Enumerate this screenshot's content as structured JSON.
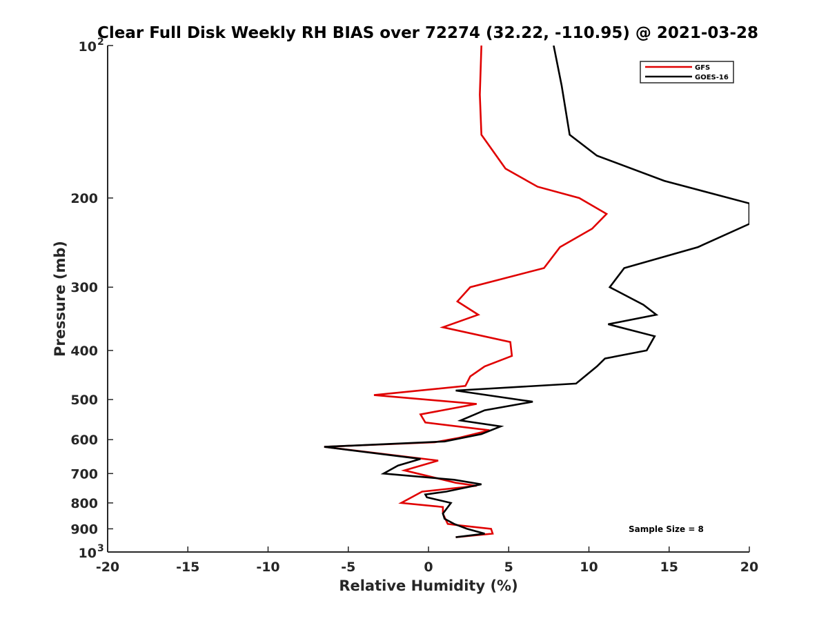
{
  "chart_data": {
    "type": "line",
    "title": "Clear Full Disk Weekly RH BIAS over 72274 (32.22, -110.95) @ 2021-03-28",
    "xlabel": "Relative Humidity (%)",
    "ylabel": "Pressure (mb)",
    "xlim": [
      -20,
      20
    ],
    "ylim": [
      100,
      1000
    ],
    "yscale": "log",
    "y_reversed": true,
    "xticks": [
      "-20",
      "-15",
      "-10",
      "-5",
      "0",
      "5",
      "10",
      "15",
      "20"
    ],
    "yticks": [
      {
        "value": 100,
        "label": "10",
        "sup": "2"
      },
      {
        "value": 200,
        "label": "200"
      },
      {
        "value": 300,
        "label": "300"
      },
      {
        "value": 400,
        "label": "400"
      },
      {
        "value": 500,
        "label": "500"
      },
      {
        "value": 600,
        "label": "600"
      },
      {
        "value": 700,
        "label": "700"
      },
      {
        "value": 800,
        "label": "800"
      },
      {
        "value": 900,
        "label": "900"
      },
      {
        "value": 1000,
        "label": "10",
        "sup": "3"
      }
    ],
    "grid": false,
    "legend_position": "top-right",
    "annotation": "Sample Size = 8",
    "series": [
      {
        "name": "GFS",
        "color": "#e00000",
        "points": [
          [
            3.3,
            100
          ],
          [
            3.2,
            125
          ],
          [
            3.3,
            150
          ],
          [
            4.8,
            175
          ],
          [
            6.8,
            190
          ],
          [
            9.4,
            200
          ],
          [
            11.1,
            215
          ],
          [
            10.2,
            230
          ],
          [
            8.2,
            250
          ],
          [
            7.2,
            275
          ],
          [
            2.6,
            300
          ],
          [
            1.8,
            320
          ],
          [
            3.1,
            340
          ],
          [
            0.9,
            360
          ],
          [
            5.1,
            385
          ],
          [
            5.2,
            410
          ],
          [
            3.5,
            430
          ],
          [
            2.6,
            450
          ],
          [
            2.3,
            470
          ],
          [
            -3.4,
            490
          ],
          [
            3.0,
            510
          ],
          [
            -0.5,
            535
          ],
          [
            -0.2,
            555
          ],
          [
            3.8,
            575
          ],
          [
            1.9,
            595
          ],
          [
            0.4,
            607
          ],
          [
            -6.5,
            620
          ],
          [
            0.6,
            660
          ],
          [
            -1.5,
            690
          ],
          [
            1.7,
            730
          ],
          [
            3.0,
            740
          ],
          [
            -0.4,
            760
          ],
          [
            -1.7,
            800
          ],
          [
            0.9,
            815
          ],
          [
            0.9,
            840
          ],
          [
            1.2,
            880
          ],
          [
            1.8,
            885
          ],
          [
            3.9,
            900
          ],
          [
            4.0,
            920
          ],
          [
            1.7,
            935
          ]
        ]
      },
      {
        "name": "GOES-16",
        "color": "#000000",
        "points": [
          [
            7.8,
            100
          ],
          [
            8.3,
            120
          ],
          [
            8.8,
            150
          ],
          [
            10.5,
            165
          ],
          [
            14.7,
            185
          ],
          [
            20.0,
            205
          ],
          [
            20.0,
            225
          ],
          [
            16.8,
            250
          ],
          [
            12.2,
            275
          ],
          [
            11.3,
            300
          ],
          [
            13.4,
            325
          ],
          [
            14.2,
            340
          ],
          [
            11.2,
            355
          ],
          [
            14.1,
            375
          ],
          [
            13.6,
            400
          ],
          [
            11.0,
            415
          ],
          [
            10.5,
            430
          ],
          [
            9.2,
            465
          ],
          [
            1.7,
            480
          ],
          [
            6.5,
            505
          ],
          [
            3.5,
            525
          ],
          [
            2.0,
            550
          ],
          [
            4.5,
            565
          ],
          [
            3.3,
            585
          ],
          [
            1.0,
            605
          ],
          [
            -6.5,
            620
          ],
          [
            -0.5,
            655
          ],
          [
            -1.9,
            675
          ],
          [
            -2.8,
            700
          ],
          [
            1.6,
            720
          ],
          [
            3.3,
            735
          ],
          [
            1.1,
            760
          ],
          [
            -0.2,
            770
          ],
          [
            -0.1,
            780
          ],
          [
            1.4,
            800
          ],
          [
            0.9,
            840
          ],
          [
            1.0,
            860
          ],
          [
            1.6,
            880
          ],
          [
            2.4,
            900
          ],
          [
            3.5,
            920
          ],
          [
            1.7,
            935
          ]
        ]
      }
    ]
  }
}
